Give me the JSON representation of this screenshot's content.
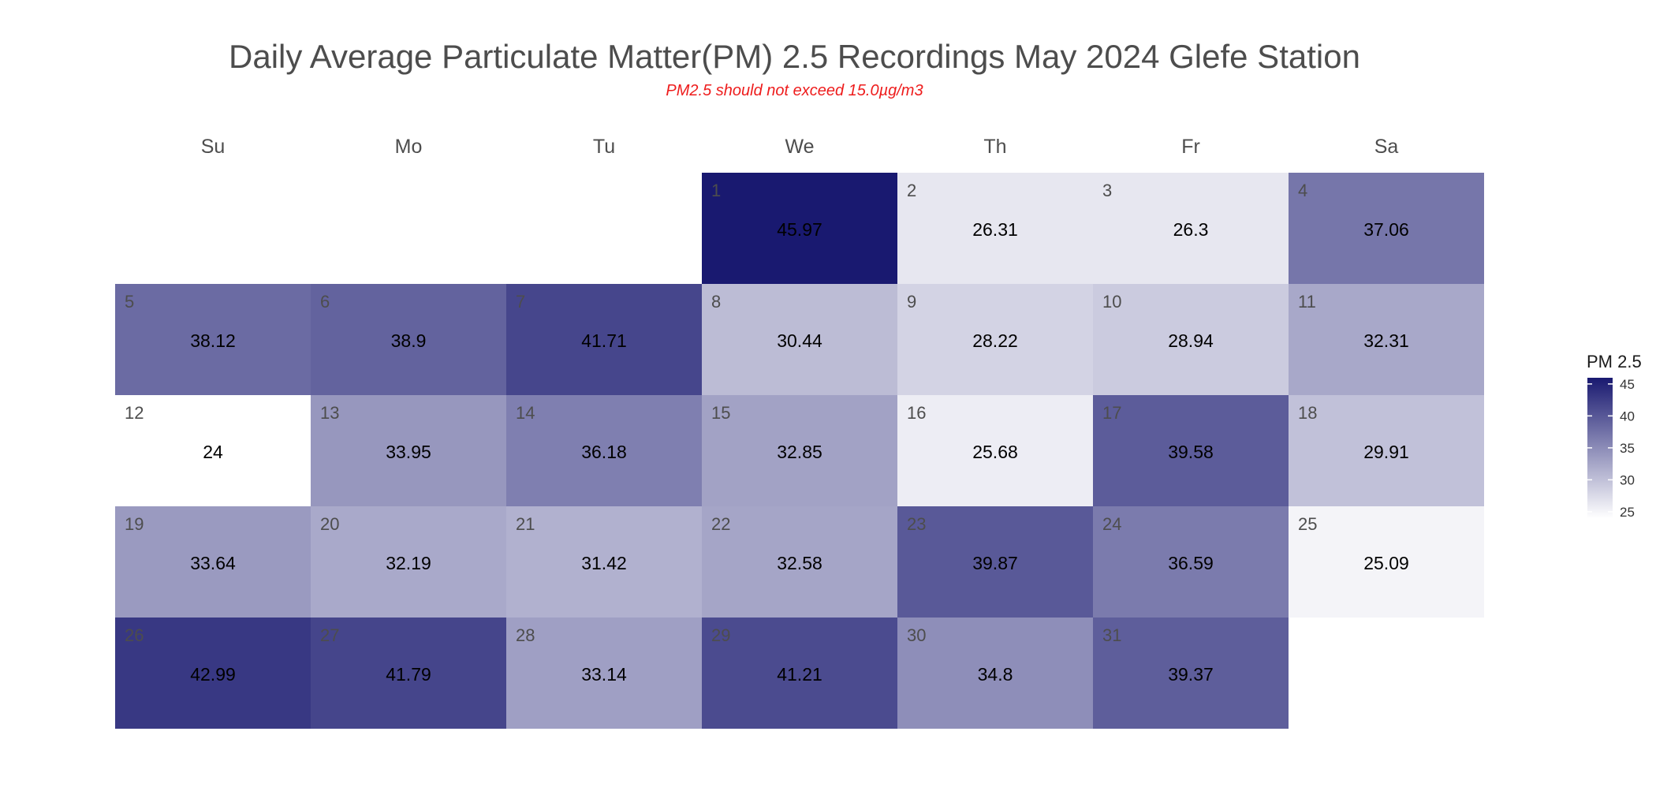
{
  "chart_data": {
    "type": "heatmap",
    "title": "Daily Average Particulate Matter(PM) 2.5 Recordings May 2024 Glefe Station",
    "subtitle": "PM2.5 should not exceed 15.0µg/m3",
    "weekdays": [
      "Su",
      "Mo",
      "Tu",
      "We",
      "Th",
      "Fr",
      "Sa"
    ],
    "first_weekday_index": 3,
    "days": [
      1,
      2,
      3,
      4,
      5,
      6,
      7,
      8,
      9,
      10,
      11,
      12,
      13,
      14,
      15,
      16,
      17,
      18,
      19,
      20,
      21,
      22,
      23,
      24,
      25,
      26,
      27,
      28,
      29,
      30,
      31
    ],
    "values": [
      45.97,
      26.31,
      26.3,
      37.06,
      38.12,
      38.9,
      41.71,
      30.44,
      28.22,
      28.94,
      32.31,
      24,
      33.95,
      36.18,
      32.85,
      25.68,
      39.58,
      29.91,
      33.64,
      32.19,
      31.42,
      32.58,
      39.87,
      36.59,
      25.09,
      42.99,
      41.79,
      33.14,
      41.21,
      34.8,
      39.37
    ],
    "legend": {
      "title": "PM 2.5",
      "ticks": [
        25,
        30,
        35,
        40,
        45
      ],
      "range": [
        24,
        45.97
      ],
      "position": "right"
    },
    "color_low": "#ffffff",
    "color_high": "#191970"
  }
}
